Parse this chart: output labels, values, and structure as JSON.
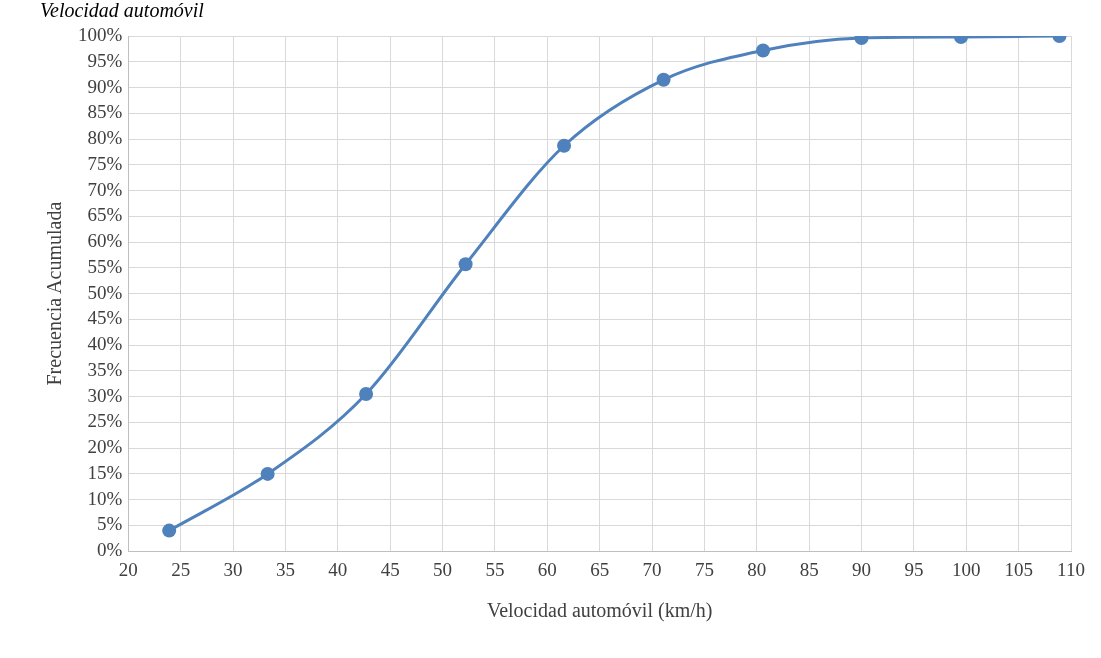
{
  "chart_data": {
    "type": "line",
    "title": "Velocidad automóvil",
    "xlabel": "Velocidad automóvil (km/h)",
    "ylabel": "Frecuencia Acumulada",
    "x": [
      23.9,
      33.3,
      42.7,
      52.2,
      61.6,
      71.1,
      80.6,
      90.0,
      99.5,
      108.9
    ],
    "series": [
      {
        "color": "#4f81bd",
        "values": [
          4,
          15,
          30.5,
          55.7,
          78.7,
          91.5,
          97.2,
          99.6,
          99.8,
          100
        ]
      }
    ],
    "xlim": [
      20,
      110
    ],
    "xticks": [
      20,
      25,
      30,
      35,
      40,
      45,
      50,
      55,
      60,
      65,
      70,
      75,
      80,
      85,
      90,
      95,
      100,
      105,
      110
    ],
    "ylim": [
      0,
      100
    ],
    "yticks": [
      {
        "value": 0,
        "label": "0%"
      },
      {
        "value": 5,
        "label": "5%"
      },
      {
        "value": 10,
        "label": "10%"
      },
      {
        "value": 15,
        "label": "15%"
      },
      {
        "value": 20,
        "label": "20%"
      },
      {
        "value": 25,
        "label": "25%"
      },
      {
        "value": 30,
        "label": "30%"
      },
      {
        "value": 35,
        "label": "35%"
      },
      {
        "value": 40,
        "label": "40%"
      },
      {
        "value": 45,
        "label": "45%"
      },
      {
        "value": 50,
        "label": "50%"
      },
      {
        "value": 55,
        "label": "55%"
      },
      {
        "value": 60,
        "label": "60%"
      },
      {
        "value": 65,
        "label": "65%"
      },
      {
        "value": 70,
        "label": "70%"
      },
      {
        "value": 75,
        "label": "75%"
      },
      {
        "value": 80,
        "label": "80%"
      },
      {
        "value": 85,
        "label": "85%"
      },
      {
        "value": 90,
        "label": "90%"
      },
      {
        "value": 95,
        "label": "95%"
      },
      {
        "value": 100,
        "label": "100%"
      }
    ],
    "grid": true,
    "legend": false,
    "marker": "circle",
    "line_style": "solid"
  }
}
